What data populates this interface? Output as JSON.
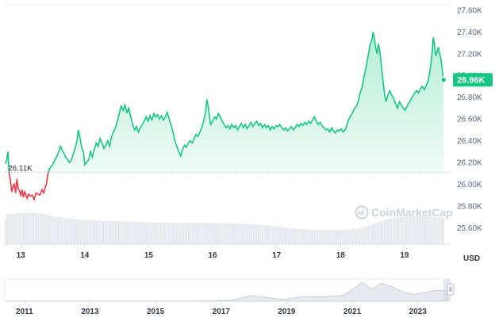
{
  "chart_data": {
    "type": "line",
    "title": "",
    "currency_label": "USD",
    "watermark": "CoinMarketCap",
    "y_ticks": [
      "27.60K",
      "27.40K",
      "27.20K",
      "27.00K",
      "26.80K",
      "26.60K",
      "26.40K",
      "26.20K",
      "26.00K",
      "25.80K",
      "25.60K"
    ],
    "ylim": [
      25.45,
      27.65
    ],
    "x_ticks": [
      "13",
      "14",
      "15",
      "16",
      "17",
      "18",
      "19"
    ],
    "x_tick_positions": [
      13,
      14,
      15,
      16,
      17,
      18,
      19
    ],
    "xlim": [
      12.75,
      19.72
    ],
    "baseline_label": "26.11K",
    "baseline_value": 26.11,
    "current_label": "26.96K",
    "current_value": 26.96,
    "colors": {
      "up": "#16c784",
      "down": "#ea3943",
      "volume": "#e4e7ec",
      "baseline": "#c8ccd4",
      "badge": "#16c784"
    },
    "series": [
      {
        "values": [
          [
            12.76,
            26.19
          ],
          [
            12.78,
            26.22
          ],
          [
            12.8,
            26.3
          ],
          [
            12.82,
            26.1
          ],
          [
            12.84,
            26.03
          ],
          [
            12.86,
            25.93
          ],
          [
            12.88,
            25.98
          ],
          [
            12.9,
            26.0
          ],
          [
            12.92,
            25.92
          ],
          [
            12.94,
            26.05
          ],
          [
            12.96,
            25.96
          ],
          [
            12.98,
            25.94
          ],
          [
            13.0,
            25.9
          ],
          [
            13.02,
            25.95
          ],
          [
            13.04,
            25.88
          ],
          [
            13.06,
            25.93
          ],
          [
            13.08,
            25.9
          ],
          [
            13.1,
            25.87
          ],
          [
            13.12,
            25.91
          ],
          [
            13.15,
            25.89
          ],
          [
            13.18,
            25.9
          ],
          [
            13.21,
            25.86
          ],
          [
            13.24,
            25.92
          ],
          [
            13.27,
            25.91
          ],
          [
            13.3,
            25.9
          ],
          [
            13.33,
            25.95
          ],
          [
            13.36,
            25.92
          ],
          [
            13.38,
            25.97
          ],
          [
            13.4,
            26.0
          ],
          [
            13.42,
            26.08
          ],
          [
            13.44,
            26.13
          ],
          [
            13.47,
            26.16
          ],
          [
            13.5,
            26.18
          ],
          [
            13.53,
            26.22
          ],
          [
            13.56,
            26.25
          ],
          [
            13.59,
            26.29
          ],
          [
            13.62,
            26.35
          ],
          [
            13.65,
            26.31
          ],
          [
            13.68,
            26.28
          ],
          [
            13.7,
            26.25
          ],
          [
            13.73,
            26.23
          ],
          [
            13.76,
            26.2
          ],
          [
            13.79,
            26.22
          ],
          [
            13.82,
            26.28
          ],
          [
            13.85,
            26.33
          ],
          [
            13.88,
            26.4
          ],
          [
            13.9,
            26.5
          ],
          [
            13.92,
            26.45
          ],
          [
            13.95,
            26.34
          ],
          [
            13.98,
            26.3
          ],
          [
            14.0,
            26.18
          ],
          [
            14.03,
            26.2
          ],
          [
            14.06,
            26.22
          ],
          [
            14.09,
            26.3
          ],
          [
            14.12,
            26.25
          ],
          [
            14.15,
            26.32
          ],
          [
            14.18,
            26.38
          ],
          [
            14.21,
            26.35
          ],
          [
            14.24,
            26.42
          ],
          [
            14.27,
            26.38
          ],
          [
            14.3,
            26.33
          ],
          [
            14.33,
            26.36
          ],
          [
            14.36,
            26.4
          ],
          [
            14.39,
            26.35
          ],
          [
            14.42,
            26.44
          ],
          [
            14.45,
            26.48
          ],
          [
            14.48,
            26.52
          ],
          [
            14.51,
            26.58
          ],
          [
            14.54,
            26.65
          ],
          [
            14.57,
            26.72
          ],
          [
            14.6,
            26.68
          ],
          [
            14.63,
            26.73
          ],
          [
            14.66,
            26.66
          ],
          [
            14.69,
            26.7
          ],
          [
            14.72,
            26.62
          ],
          [
            14.75,
            26.55
          ],
          [
            14.78,
            26.5
          ],
          [
            14.81,
            26.53
          ],
          [
            14.84,
            26.48
          ],
          [
            14.87,
            26.52
          ],
          [
            14.9,
            26.55
          ],
          [
            14.93,
            26.58
          ],
          [
            14.96,
            26.62
          ],
          [
            14.99,
            26.58
          ],
          [
            15.02,
            26.63
          ],
          [
            15.05,
            26.59
          ],
          [
            15.08,
            26.65
          ],
          [
            15.11,
            26.62
          ],
          [
            15.14,
            26.64
          ],
          [
            15.17,
            26.6
          ],
          [
            15.2,
            26.63
          ],
          [
            15.23,
            26.59
          ],
          [
            15.26,
            26.62
          ],
          [
            15.29,
            26.66
          ],
          [
            15.32,
            26.6
          ],
          [
            15.35,
            26.55
          ],
          [
            15.38,
            26.48
          ],
          [
            15.41,
            26.4
          ],
          [
            15.44,
            26.35
          ],
          [
            15.47,
            26.3
          ],
          [
            15.5,
            26.26
          ],
          [
            15.53,
            26.32
          ],
          [
            15.56,
            26.36
          ],
          [
            15.59,
            26.34
          ],
          [
            15.62,
            26.38
          ],
          [
            15.65,
            26.4
          ],
          [
            15.68,
            26.38
          ],
          [
            15.71,
            26.42
          ],
          [
            15.74,
            26.46
          ],
          [
            15.77,
            26.44
          ],
          [
            15.8,
            26.48
          ],
          [
            15.83,
            26.52
          ],
          [
            15.86,
            26.58
          ],
          [
            15.89,
            26.67
          ],
          [
            15.91,
            26.78
          ],
          [
            15.93,
            26.72
          ],
          [
            15.95,
            26.63
          ],
          [
            15.97,
            26.55
          ],
          [
            16.0,
            26.58
          ],
          [
            16.03,
            26.62
          ],
          [
            16.06,
            26.6
          ],
          [
            16.09,
            26.65
          ],
          [
            16.12,
            26.62
          ],
          [
            16.15,
            26.58
          ],
          [
            16.18,
            26.55
          ],
          [
            16.21,
            26.52
          ],
          [
            16.24,
            26.54
          ],
          [
            16.27,
            26.51
          ],
          [
            16.3,
            26.55
          ],
          [
            16.33,
            26.52
          ],
          [
            16.36,
            26.54
          ],
          [
            16.39,
            26.5
          ],
          [
            16.42,
            26.53
          ],
          [
            16.45,
            26.56
          ],
          [
            16.48,
            26.52
          ],
          [
            16.51,
            26.55
          ],
          [
            16.54,
            26.51
          ],
          [
            16.57,
            26.54
          ],
          [
            16.6,
            26.57
          ],
          [
            16.63,
            26.53
          ],
          [
            16.66,
            26.56
          ],
          [
            16.69,
            26.58
          ],
          [
            16.72,
            26.54
          ],
          [
            16.75,
            26.56
          ],
          [
            16.78,
            26.52
          ],
          [
            16.81,
            26.55
          ],
          [
            16.84,
            26.52
          ],
          [
            16.87,
            26.54
          ],
          [
            16.9,
            26.5
          ],
          [
            16.93,
            26.53
          ],
          [
            16.96,
            26.51
          ],
          [
            16.99,
            26.54
          ],
          [
            17.02,
            26.53
          ],
          [
            17.05,
            26.55
          ],
          [
            17.08,
            26.52
          ],
          [
            17.11,
            26.5
          ],
          [
            17.14,
            26.52
          ],
          [
            17.17,
            26.49
          ],
          [
            17.2,
            26.51
          ],
          [
            17.23,
            26.53
          ],
          [
            17.26,
            26.5
          ],
          [
            17.29,
            26.52
          ],
          [
            17.32,
            26.55
          ],
          [
            17.35,
            26.53
          ],
          [
            17.38,
            26.56
          ],
          [
            17.41,
            26.54
          ],
          [
            17.44,
            26.57
          ],
          [
            17.47,
            26.55
          ],
          [
            17.5,
            26.58
          ],
          [
            17.53,
            26.56
          ],
          [
            17.56,
            26.59
          ],
          [
            17.59,
            26.62
          ],
          [
            17.62,
            26.58
          ],
          [
            17.65,
            26.55
          ],
          [
            17.68,
            26.57
          ],
          [
            17.71,
            26.54
          ],
          [
            17.74,
            26.52
          ],
          [
            17.77,
            26.5
          ],
          [
            17.8,
            26.51
          ],
          [
            17.83,
            26.48
          ],
          [
            17.86,
            26.52
          ],
          [
            17.89,
            26.49
          ],
          [
            17.92,
            26.47
          ],
          [
            17.95,
            26.5
          ],
          [
            17.98,
            26.49
          ],
          [
            18.01,
            26.51
          ],
          [
            18.04,
            26.48
          ],
          [
            18.07,
            26.5
          ],
          [
            18.1,
            26.55
          ],
          [
            18.13,
            26.6
          ],
          [
            18.16,
            26.63
          ],
          [
            18.19,
            26.66
          ],
          [
            18.22,
            26.7
          ],
          [
            18.25,
            26.72
          ],
          [
            18.28,
            26.77
          ],
          [
            18.31,
            26.85
          ],
          [
            18.34,
            26.9
          ],
          [
            18.37,
            27.0
          ],
          [
            18.4,
            27.08
          ],
          [
            18.43,
            27.18
          ],
          [
            18.46,
            27.28
          ],
          [
            18.49,
            27.33
          ],
          [
            18.51,
            27.4
          ],
          [
            18.53,
            27.34
          ],
          [
            18.55,
            27.25
          ],
          [
            18.57,
            27.2
          ],
          [
            18.59,
            27.29
          ],
          [
            18.61,
            27.24
          ],
          [
            18.63,
            27.14
          ],
          [
            18.65,
            27.03
          ],
          [
            18.67,
            26.92
          ],
          [
            18.69,
            26.82
          ],
          [
            18.71,
            26.76
          ],
          [
            18.74,
            26.82
          ],
          [
            18.77,
            26.86
          ],
          [
            18.8,
            26.82
          ],
          [
            18.83,
            26.79
          ],
          [
            18.86,
            26.74
          ],
          [
            18.89,
            26.7
          ],
          [
            18.92,
            26.76
          ],
          [
            18.95,
            26.73
          ],
          [
            18.98,
            26.7
          ],
          [
            19.01,
            26.68
          ],
          [
            19.04,
            26.72
          ],
          [
            19.07,
            26.75
          ],
          [
            19.1,
            26.78
          ],
          [
            19.13,
            26.81
          ],
          [
            19.16,
            26.84
          ],
          [
            19.19,
            26.86
          ],
          [
            19.22,
            26.84
          ],
          [
            19.25,
            26.88
          ],
          [
            19.28,
            26.9
          ],
          [
            19.31,
            26.87
          ],
          [
            19.34,
            26.91
          ],
          [
            19.37,
            26.95
          ],
          [
            19.4,
            27.05
          ],
          [
            19.43,
            27.2
          ],
          [
            19.45,
            27.35
          ],
          [
            19.47,
            27.28
          ],
          [
            19.49,
            27.18
          ],
          [
            19.51,
            27.22
          ],
          [
            19.53,
            27.26
          ],
          [
            19.55,
            27.2
          ],
          [
            19.57,
            27.15
          ],
          [
            19.59,
            27.06
          ],
          [
            19.6,
            26.98
          ],
          [
            19.61,
            26.96
          ]
        ]
      }
    ],
    "volume": [
      [
        12.76,
        0.78
      ],
      [
        12.9,
        0.8
      ],
      [
        13.05,
        0.82
      ],
      [
        13.2,
        0.81
      ],
      [
        13.35,
        0.79
      ],
      [
        13.5,
        0.72
      ],
      [
        13.7,
        0.68
      ],
      [
        13.9,
        0.64
      ],
      [
        14.1,
        0.62
      ],
      [
        14.3,
        0.61
      ],
      [
        14.5,
        0.6
      ],
      [
        14.7,
        0.59
      ],
      [
        14.9,
        0.58
      ],
      [
        15.1,
        0.57
      ],
      [
        15.3,
        0.56
      ],
      [
        15.5,
        0.55
      ],
      [
        15.7,
        0.56
      ],
      [
        15.9,
        0.55
      ],
      [
        16.1,
        0.55
      ],
      [
        16.3,
        0.54
      ],
      [
        16.5,
        0.52
      ],
      [
        16.7,
        0.51
      ],
      [
        16.9,
        0.48
      ],
      [
        17.1,
        0.44
      ],
      [
        17.3,
        0.4
      ],
      [
        17.5,
        0.38
      ],
      [
        17.7,
        0.37
      ],
      [
        17.9,
        0.37
      ],
      [
        18.1,
        0.38
      ],
      [
        18.3,
        0.42
      ],
      [
        18.5,
        0.52
      ],
      [
        18.7,
        0.64
      ],
      [
        18.9,
        0.7
      ],
      [
        19.1,
        0.73
      ],
      [
        19.3,
        0.72
      ],
      [
        19.5,
        0.7
      ],
      [
        19.61,
        0.68
      ]
    ],
    "navigator": {
      "x_ticks": [
        "2011",
        "2013",
        "2015",
        "2017",
        "2019",
        "2021",
        "2023"
      ],
      "x_tick_positions": [
        2011,
        2013,
        2015,
        2017,
        2019,
        2021,
        2023
      ],
      "xlim": [
        2010.4,
        2024.0
      ],
      "values": [
        [
          2010.4,
          0.0
        ],
        [
          2011.5,
          0.0
        ],
        [
          2012.5,
          0.0
        ],
        [
          2013.5,
          0.0
        ],
        [
          2014.5,
          0.0
        ],
        [
          2015.5,
          0.0
        ],
        [
          2016.5,
          0.01
        ],
        [
          2017.3,
          0.04
        ],
        [
          2017.9,
          0.3
        ],
        [
          2018.3,
          0.2
        ],
        [
          2018.9,
          0.1
        ],
        [
          2019.5,
          0.25
        ],
        [
          2020.0,
          0.22
        ],
        [
          2020.7,
          0.3
        ],
        [
          2021.0,
          0.6
        ],
        [
          2021.3,
          1.0
        ],
        [
          2021.6,
          0.62
        ],
        [
          2021.9,
          0.95
        ],
        [
          2022.3,
          0.7
        ],
        [
          2022.6,
          0.45
        ],
        [
          2022.9,
          0.35
        ],
        [
          2023.3,
          0.5
        ],
        [
          2023.6,
          0.58
        ],
        [
          2023.9,
          0.55
        ]
      ]
    }
  }
}
